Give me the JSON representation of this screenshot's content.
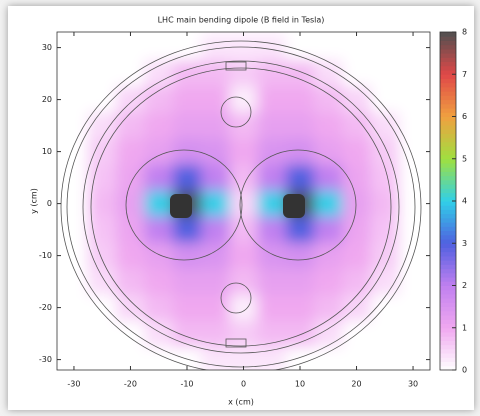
{
  "chart_data": {
    "type": "heatmap",
    "title": "LHC main bending dipole (B field in Tesla)",
    "xlabel": "x (cm)",
    "ylabel": "y (cm)",
    "xlim": [
      -33,
      33
    ],
    "ylim": [
      -32,
      33
    ],
    "xticks": [
      -30,
      -20,
      -10,
      0,
      10,
      20,
      30
    ],
    "yticks": [
      -30,
      -20,
      -10,
      0,
      10,
      20,
      30
    ],
    "x": [
      -30,
      -25,
      -20,
      -15,
      -10,
      -5,
      0,
      5,
      10,
      15,
      20,
      25,
      30
    ],
    "y": [
      30,
      25,
      20,
      15,
      10,
      5,
      0,
      -5,
      -10,
      -15,
      -20,
      -25,
      -30
    ],
    "z": [
      [
        0,
        0,
        0,
        0,
        0,
        0.3,
        0.3,
        0.3,
        0,
        0,
        0,
        0,
        0
      ],
      [
        0,
        0,
        0,
        0.4,
        0.8,
        0.8,
        0.6,
        0.8,
        0.8,
        0.4,
        0,
        0,
        0
      ],
      [
        0,
        0,
        0.5,
        0.8,
        1,
        1,
        0.2,
        1,
        1,
        0.8,
        0.5,
        0,
        0
      ],
      [
        0,
        0.4,
        0.8,
        1,
        1.2,
        1.2,
        0.8,
        1.2,
        1.2,
        1,
        0.8,
        0.4,
        0
      ],
      [
        0,
        0.6,
        1,
        1.2,
        1.6,
        1.5,
        1,
        1.5,
        1.6,
        1.2,
        1,
        0.6,
        0
      ],
      [
        0,
        0.7,
        1.1,
        2,
        3,
        2,
        0.8,
        2,
        3,
        2,
        1.1,
        0.7,
        0
      ],
      [
        0,
        0.8,
        1.2,
        4,
        8,
        4,
        0.5,
        4,
        8,
        4,
        1.2,
        0.8,
        0
      ],
      [
        0,
        0.7,
        1.1,
        2,
        3,
        2,
        0.8,
        2,
        3,
        2,
        1.1,
        0.7,
        0
      ],
      [
        0,
        0.6,
        1,
        1.2,
        1.6,
        1.5,
        1,
        1.5,
        1.6,
        1.2,
        1,
        0.6,
        0
      ],
      [
        0,
        0.4,
        0.8,
        1,
        1.2,
        1.2,
        0.8,
        1.2,
        1.2,
        1,
        0.8,
        0.4,
        0
      ],
      [
        0,
        0,
        0.5,
        0.8,
        1,
        1,
        0.2,
        1,
        1,
        0.8,
        0.5,
        0,
        0
      ],
      [
        0,
        0,
        0,
        0.4,
        0.8,
        0.8,
        0.6,
        0.8,
        0.8,
        0.4,
        0,
        0,
        0
      ],
      [
        0,
        0,
        0,
        0,
        0,
        0.3,
        0.3,
        0.3,
        0,
        0,
        0,
        0,
        0
      ]
    ],
    "colorbar": {
      "lim": [
        0,
        8
      ],
      "ticks": [
        0,
        1,
        2,
        3,
        4,
        5,
        6,
        7,
        8
      ],
      "colors": [
        "#ffffff",
        "#f0a8f0",
        "#c080f0",
        "#5060e0",
        "#30d0e8",
        "#a0e040",
        "#f0a040",
        "#e04848",
        "#505050"
      ]
    }
  }
}
